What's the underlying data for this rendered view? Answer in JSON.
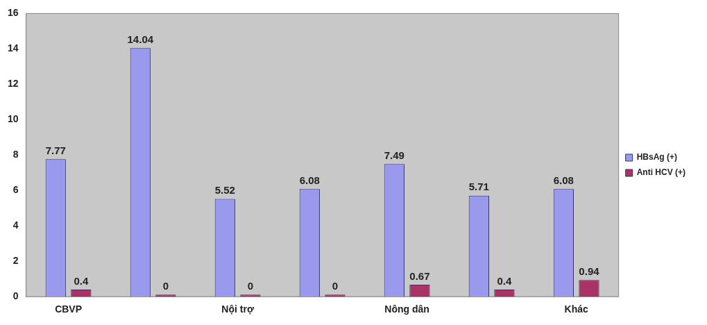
{
  "chart_data": {
    "type": "bar",
    "categories": [
      "CBVP",
      null,
      "Nội trợ",
      null,
      "Nông dân",
      null,
      "Khác"
    ],
    "series": [
      {
        "name": "HBsAg (+)",
        "color": "#9999ee",
        "values": [
          7.77,
          14.04,
          5.52,
          6.08,
          7.49,
          5.71,
          6.08
        ]
      },
      {
        "name": "Anti HCV (+)",
        "color": "#aa3366",
        "values": [
          0.4,
          0,
          0,
          0,
          0.67,
          0.4,
          0.94
        ]
      }
    ],
    "ylim": [
      0,
      16
    ],
    "yticks": [
      0,
      2,
      4,
      6,
      8,
      10,
      12,
      14,
      16
    ],
    "grid": false,
    "legend": "right",
    "data_labels": true
  }
}
